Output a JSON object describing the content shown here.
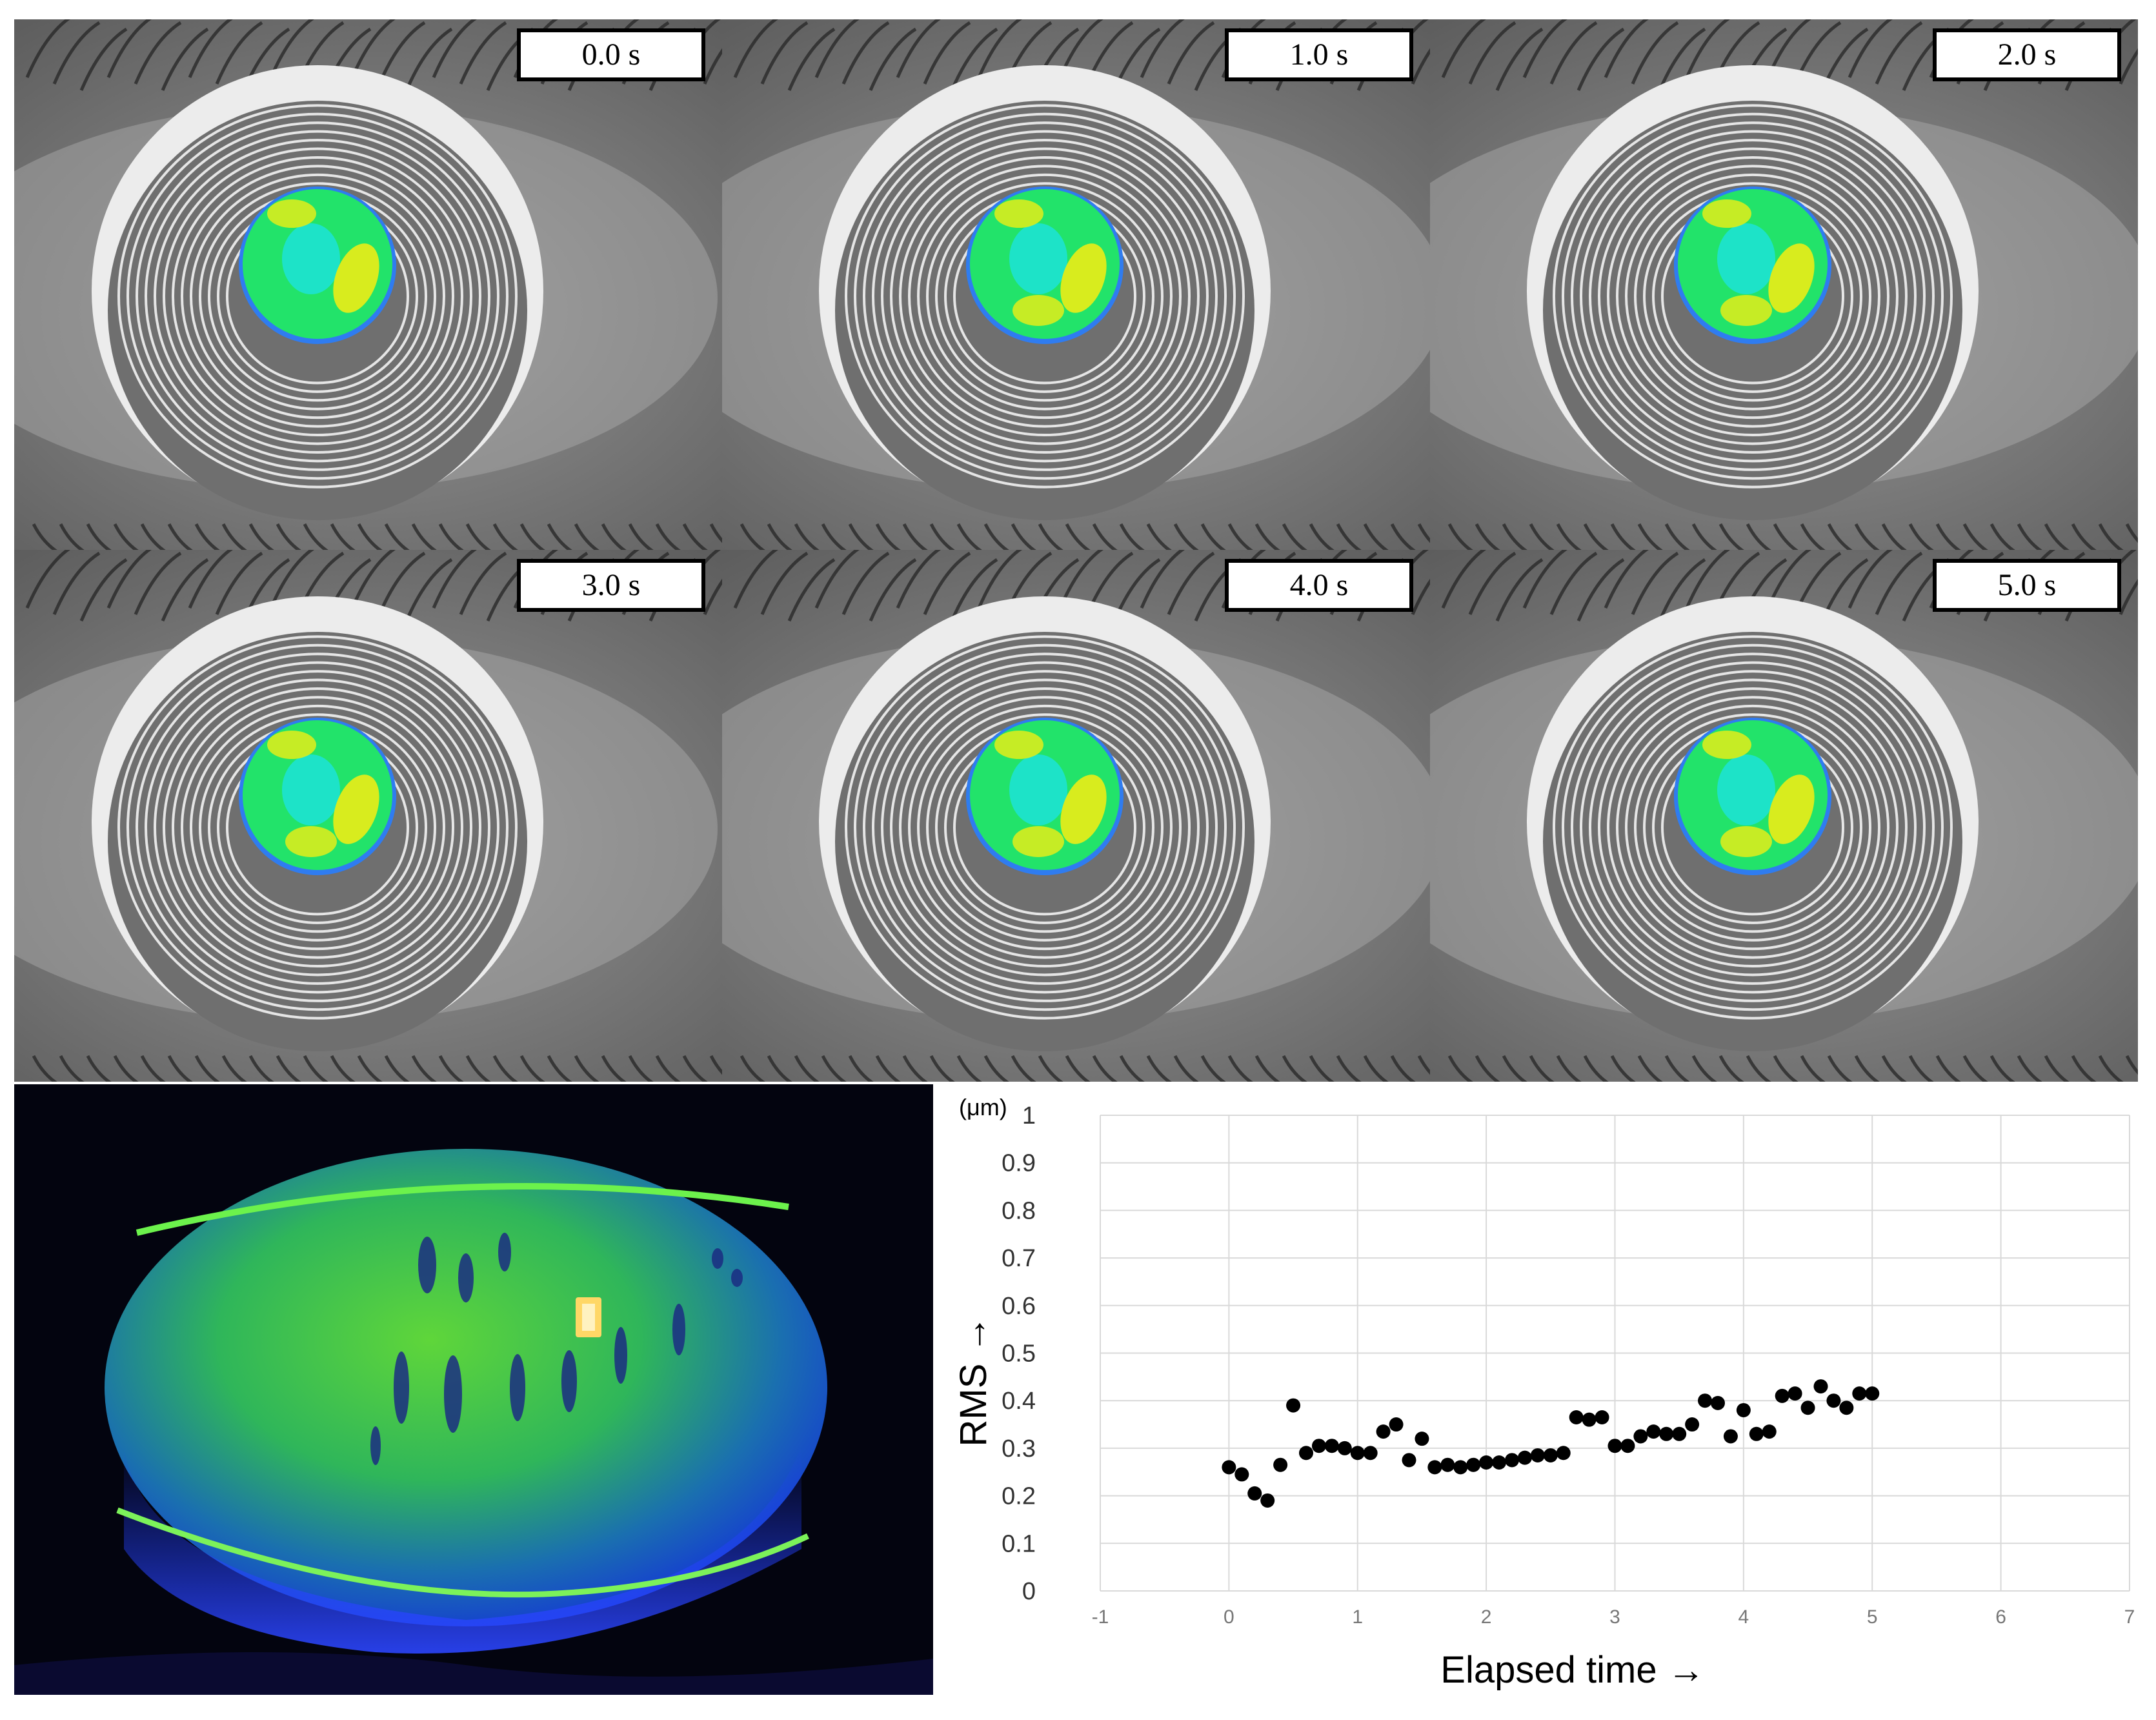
{
  "panels": [
    {
      "label": "0.0 s"
    },
    {
      "label": "1.0 s"
    },
    {
      "label": "2.0 s"
    },
    {
      "label": "3.0 s"
    },
    {
      "label": "4.0 s"
    },
    {
      "label": "5.0 s"
    }
  ],
  "colors": {
    "map_green": "#22e36a",
    "map_cyan": "#1de3c8",
    "map_yellow": "#d8ec1e",
    "map_blue": "#2f7cf0",
    "fluorescein_green": "#39d84a",
    "cobalt_blue": "#1e3cff"
  },
  "chart_data": {
    "type": "scatter",
    "title": "",
    "unit_label": "(μm)",
    "ylabel": "RMS →",
    "xlabel": "Elapsed time →",
    "xlim": [
      -1,
      7
    ],
    "ylim": [
      0,
      1
    ],
    "x_ticks": [
      "-1",
      "0",
      "1",
      "2",
      "3",
      "4",
      "5",
      "6",
      "7"
    ],
    "y_ticks": [
      "0",
      "0.1",
      "0.2",
      "0.3",
      "0.4",
      "0.5",
      "0.6",
      "0.7",
      "0.8",
      "0.9",
      "1"
    ],
    "grid": true,
    "legend": "none",
    "series": [
      {
        "points": [
          [
            0.0,
            0.26
          ],
          [
            0.1,
            0.245
          ],
          [
            0.2,
            0.205
          ],
          [
            0.3,
            0.19
          ],
          [
            0.4,
            0.265
          ],
          [
            0.5,
            0.39
          ],
          [
            0.6,
            0.29
          ],
          [
            0.7,
            0.305
          ],
          [
            0.8,
            0.305
          ],
          [
            0.9,
            0.3
          ],
          [
            1.0,
            0.29
          ],
          [
            1.1,
            0.29
          ],
          [
            1.2,
            0.335
          ],
          [
            1.3,
            0.35
          ],
          [
            1.4,
            0.275
          ],
          [
            1.5,
            0.32
          ],
          [
            1.6,
            0.26
          ],
          [
            1.7,
            0.265
          ],
          [
            1.8,
            0.26
          ],
          [
            1.9,
            0.265
          ],
          [
            2.0,
            0.27
          ],
          [
            2.1,
            0.27
          ],
          [
            2.2,
            0.275
          ],
          [
            2.3,
            0.28
          ],
          [
            2.4,
            0.285
          ],
          [
            2.5,
            0.285
          ],
          [
            2.6,
            0.29
          ],
          [
            2.7,
            0.365
          ],
          [
            2.8,
            0.36
          ],
          [
            2.9,
            0.365
          ],
          [
            3.0,
            0.305
          ],
          [
            3.1,
            0.305
          ],
          [
            3.2,
            0.325
          ],
          [
            3.3,
            0.335
          ],
          [
            3.4,
            0.33
          ],
          [
            3.5,
            0.33
          ],
          [
            3.6,
            0.35
          ],
          [
            3.7,
            0.4
          ],
          [
            3.8,
            0.395
          ],
          [
            3.9,
            0.325
          ],
          [
            4.0,
            0.38
          ],
          [
            4.1,
            0.33
          ],
          [
            4.2,
            0.335
          ],
          [
            4.3,
            0.41
          ],
          [
            4.4,
            0.415
          ],
          [
            4.5,
            0.385
          ],
          [
            4.6,
            0.43
          ],
          [
            4.7,
            0.4
          ],
          [
            4.8,
            0.385
          ],
          [
            4.9,
            0.415
          ],
          [
            5.0,
            0.415
          ]
        ]
      }
    ]
  }
}
